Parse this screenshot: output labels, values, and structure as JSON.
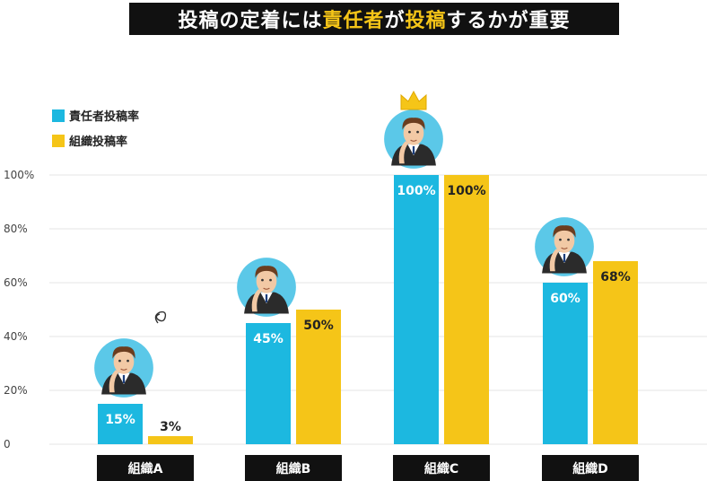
{
  "title": {
    "part1": "投稿の定着には",
    "part2": "責任者",
    "part3": "が",
    "part4": "投稿",
    "part5": "するかが重要"
  },
  "colors": {
    "series1": "#1cb8e0",
    "series2": "#f5c518",
    "grid": "#e6e6e6",
    "label_bg": "#111111"
  },
  "chart_data": {
    "type": "bar",
    "categories": [
      "組織A",
      "組織B",
      "組織C",
      "組織D"
    ],
    "series": [
      {
        "name": "責任者投稿率",
        "values": [
          15,
          45,
          100,
          60
        ],
        "value_labels": [
          "15%",
          "45%",
          "100%",
          "60%"
        ]
      },
      {
        "name": "組織投稿率",
        "values": [
          3,
          50,
          100,
          68
        ],
        "value_labels": [
          "3%",
          "50%",
          "100%",
          "68%"
        ]
      }
    ],
    "yticks": [
      0,
      20,
      40,
      60,
      80,
      100
    ],
    "ytick_labels": [
      "0",
      "20%",
      "40%",
      "60%",
      "80%",
      "100%"
    ],
    "ylim": [
      0,
      100
    ],
    "grid": true,
    "legend": "top-left"
  }
}
